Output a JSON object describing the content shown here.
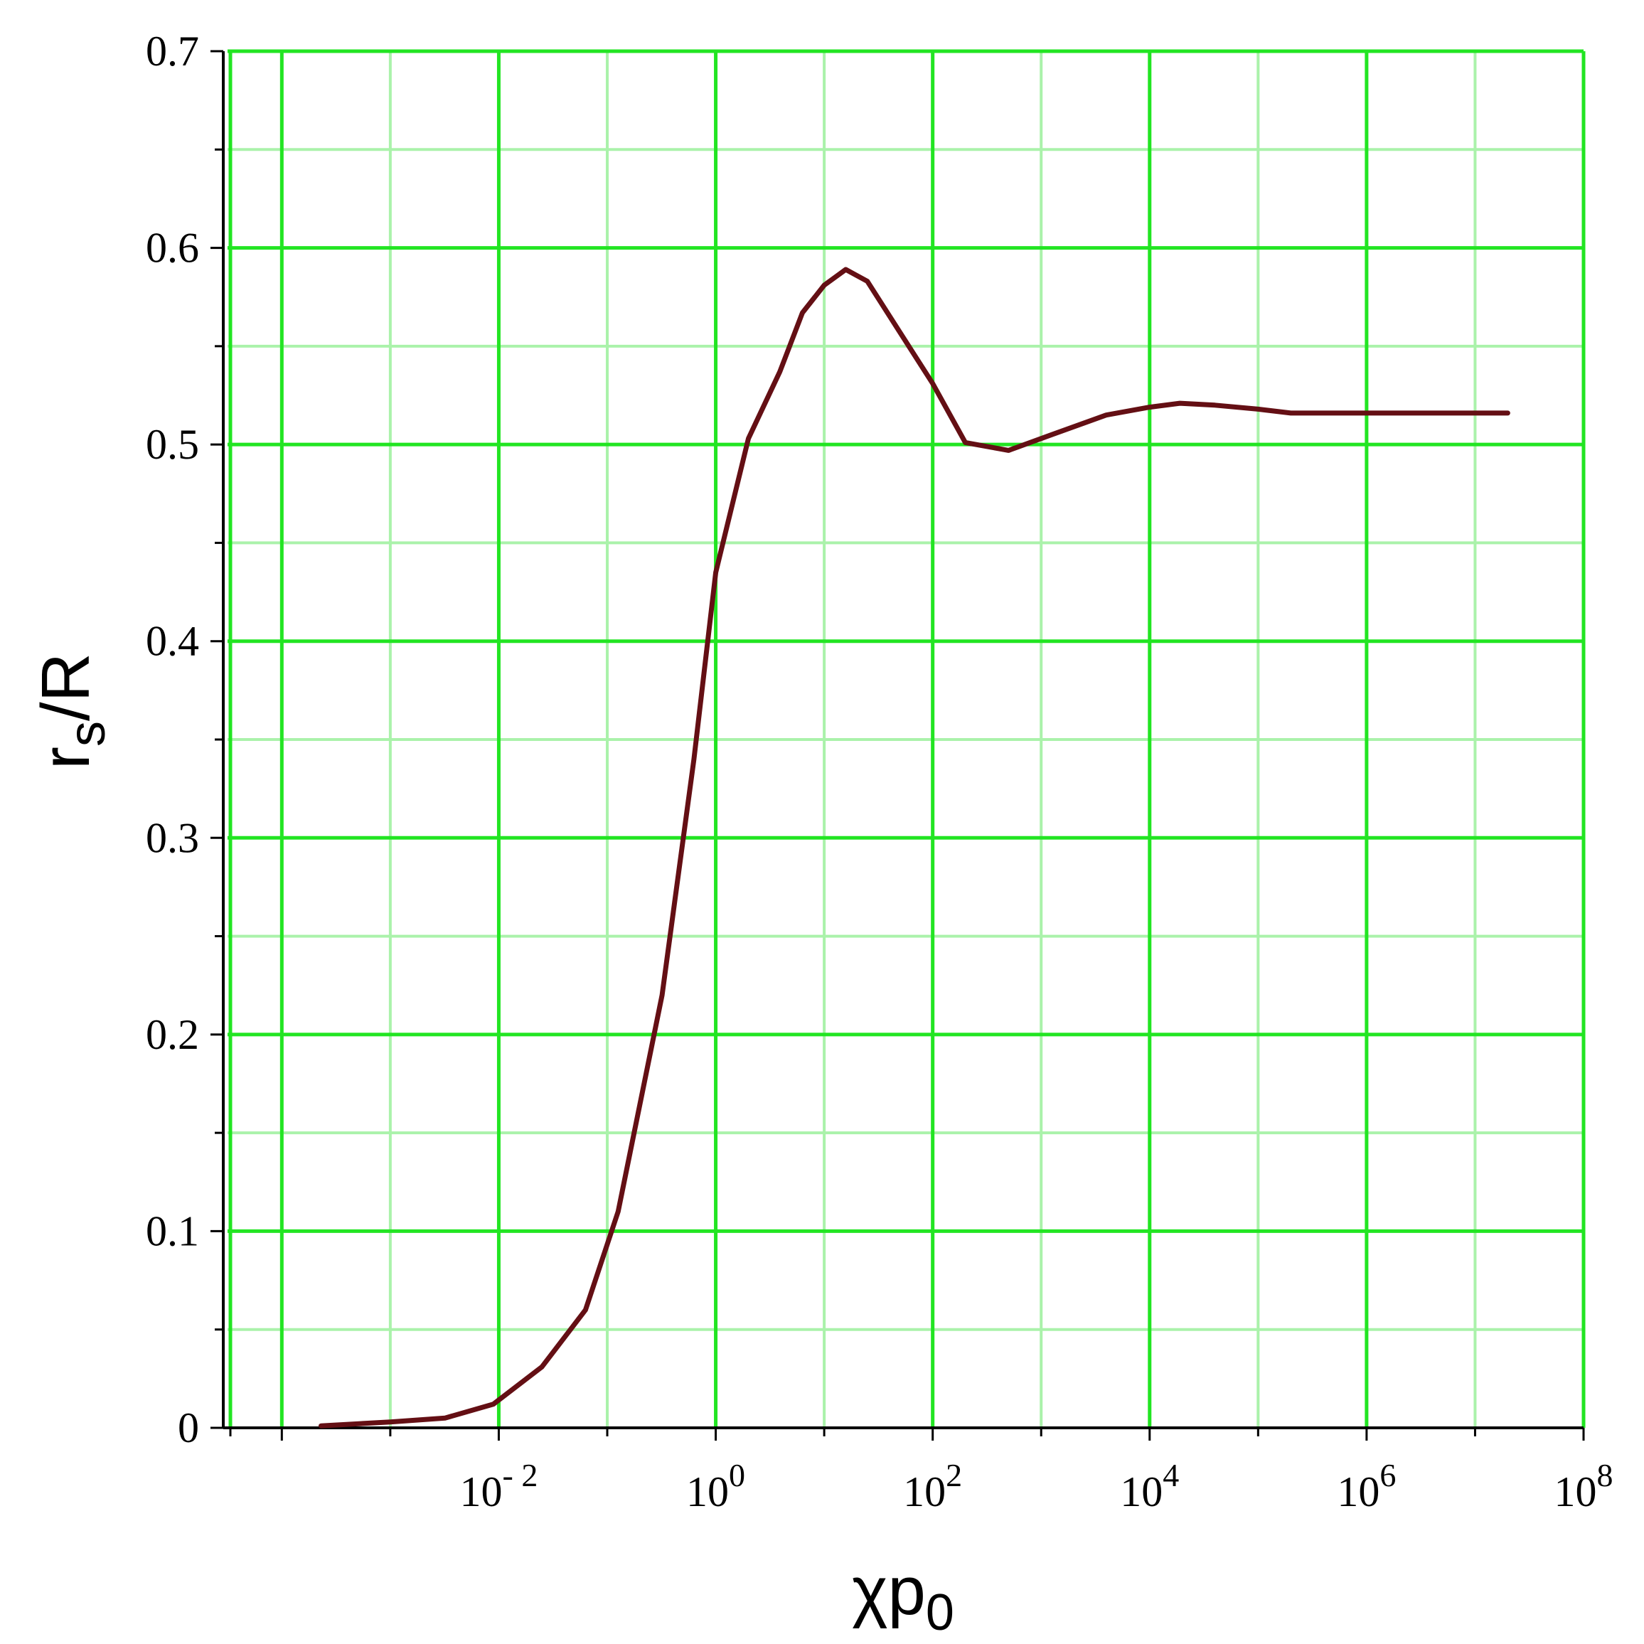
{
  "chart_data": {
    "type": "line",
    "xlabel": "χp",
    "xlabel_sub": "0",
    "ylabel": "r",
    "ylabel_sub": "s",
    "ylabel_rest": "/R",
    "x_scale": "log",
    "xlim": [
      3.16e-05,
      100000000
    ],
    "ylim": [
      0,
      0.7
    ],
    "x_ticks": [
      {
        "base": "10",
        "exp": "- 2",
        "value": 0.01
      },
      {
        "base": "10",
        "exp": "0",
        "value": 1
      },
      {
        "base": "10",
        "exp": "2",
        "value": 100
      },
      {
        "base": "10",
        "exp": "4",
        "value": 10000
      },
      {
        "base": "10",
        "exp": "6",
        "value": 1000000
      },
      {
        "base": "10",
        "exp": "8",
        "value": 100000000
      }
    ],
    "y_ticks": [
      {
        "label": "0",
        "value": 0
      },
      {
        "label": "0.1",
        "value": 0.1
      },
      {
        "label": "0.2",
        "value": 0.2
      },
      {
        "label": "0.3",
        "value": 0.3
      },
      {
        "label": "0.4",
        "value": 0.4
      },
      {
        "label": "0.5",
        "value": 0.5
      },
      {
        "label": "0.6",
        "value": 0.6
      },
      {
        "label": "0.7",
        "value": 0.7
      }
    ],
    "grid": true,
    "colors": {
      "major_grid": "#22e522",
      "minor_grid": "#aaf2aa",
      "line": "#640f14",
      "axis": "#000000"
    },
    "series": [
      {
        "x": [
          0.00023,
          0.001,
          0.0032,
          0.0089,
          0.025,
          0.063,
          0.126,
          0.32,
          0.63,
          1.0,
          2.0,
          3.9,
          6.3,
          10.0,
          15.8,
          25,
          50,
          100,
          200,
          500,
          1250,
          3980,
          10000,
          19000,
          40000,
          100000,
          200000,
          1000000,
          10000000,
          20000000
        ],
        "y": [
          0.001,
          0.003,
          0.005,
          0.012,
          0.031,
          0.06,
          0.11,
          0.22,
          0.34,
          0.435,
          0.503,
          0.537,
          0.567,
          0.581,
          0.589,
          0.583,
          0.557,
          0.531,
          0.501,
          0.497,
          0.505,
          0.515,
          0.519,
          0.521,
          0.52,
          0.518,
          0.516,
          0.516,
          0.516,
          0.516
        ]
      }
    ]
  }
}
